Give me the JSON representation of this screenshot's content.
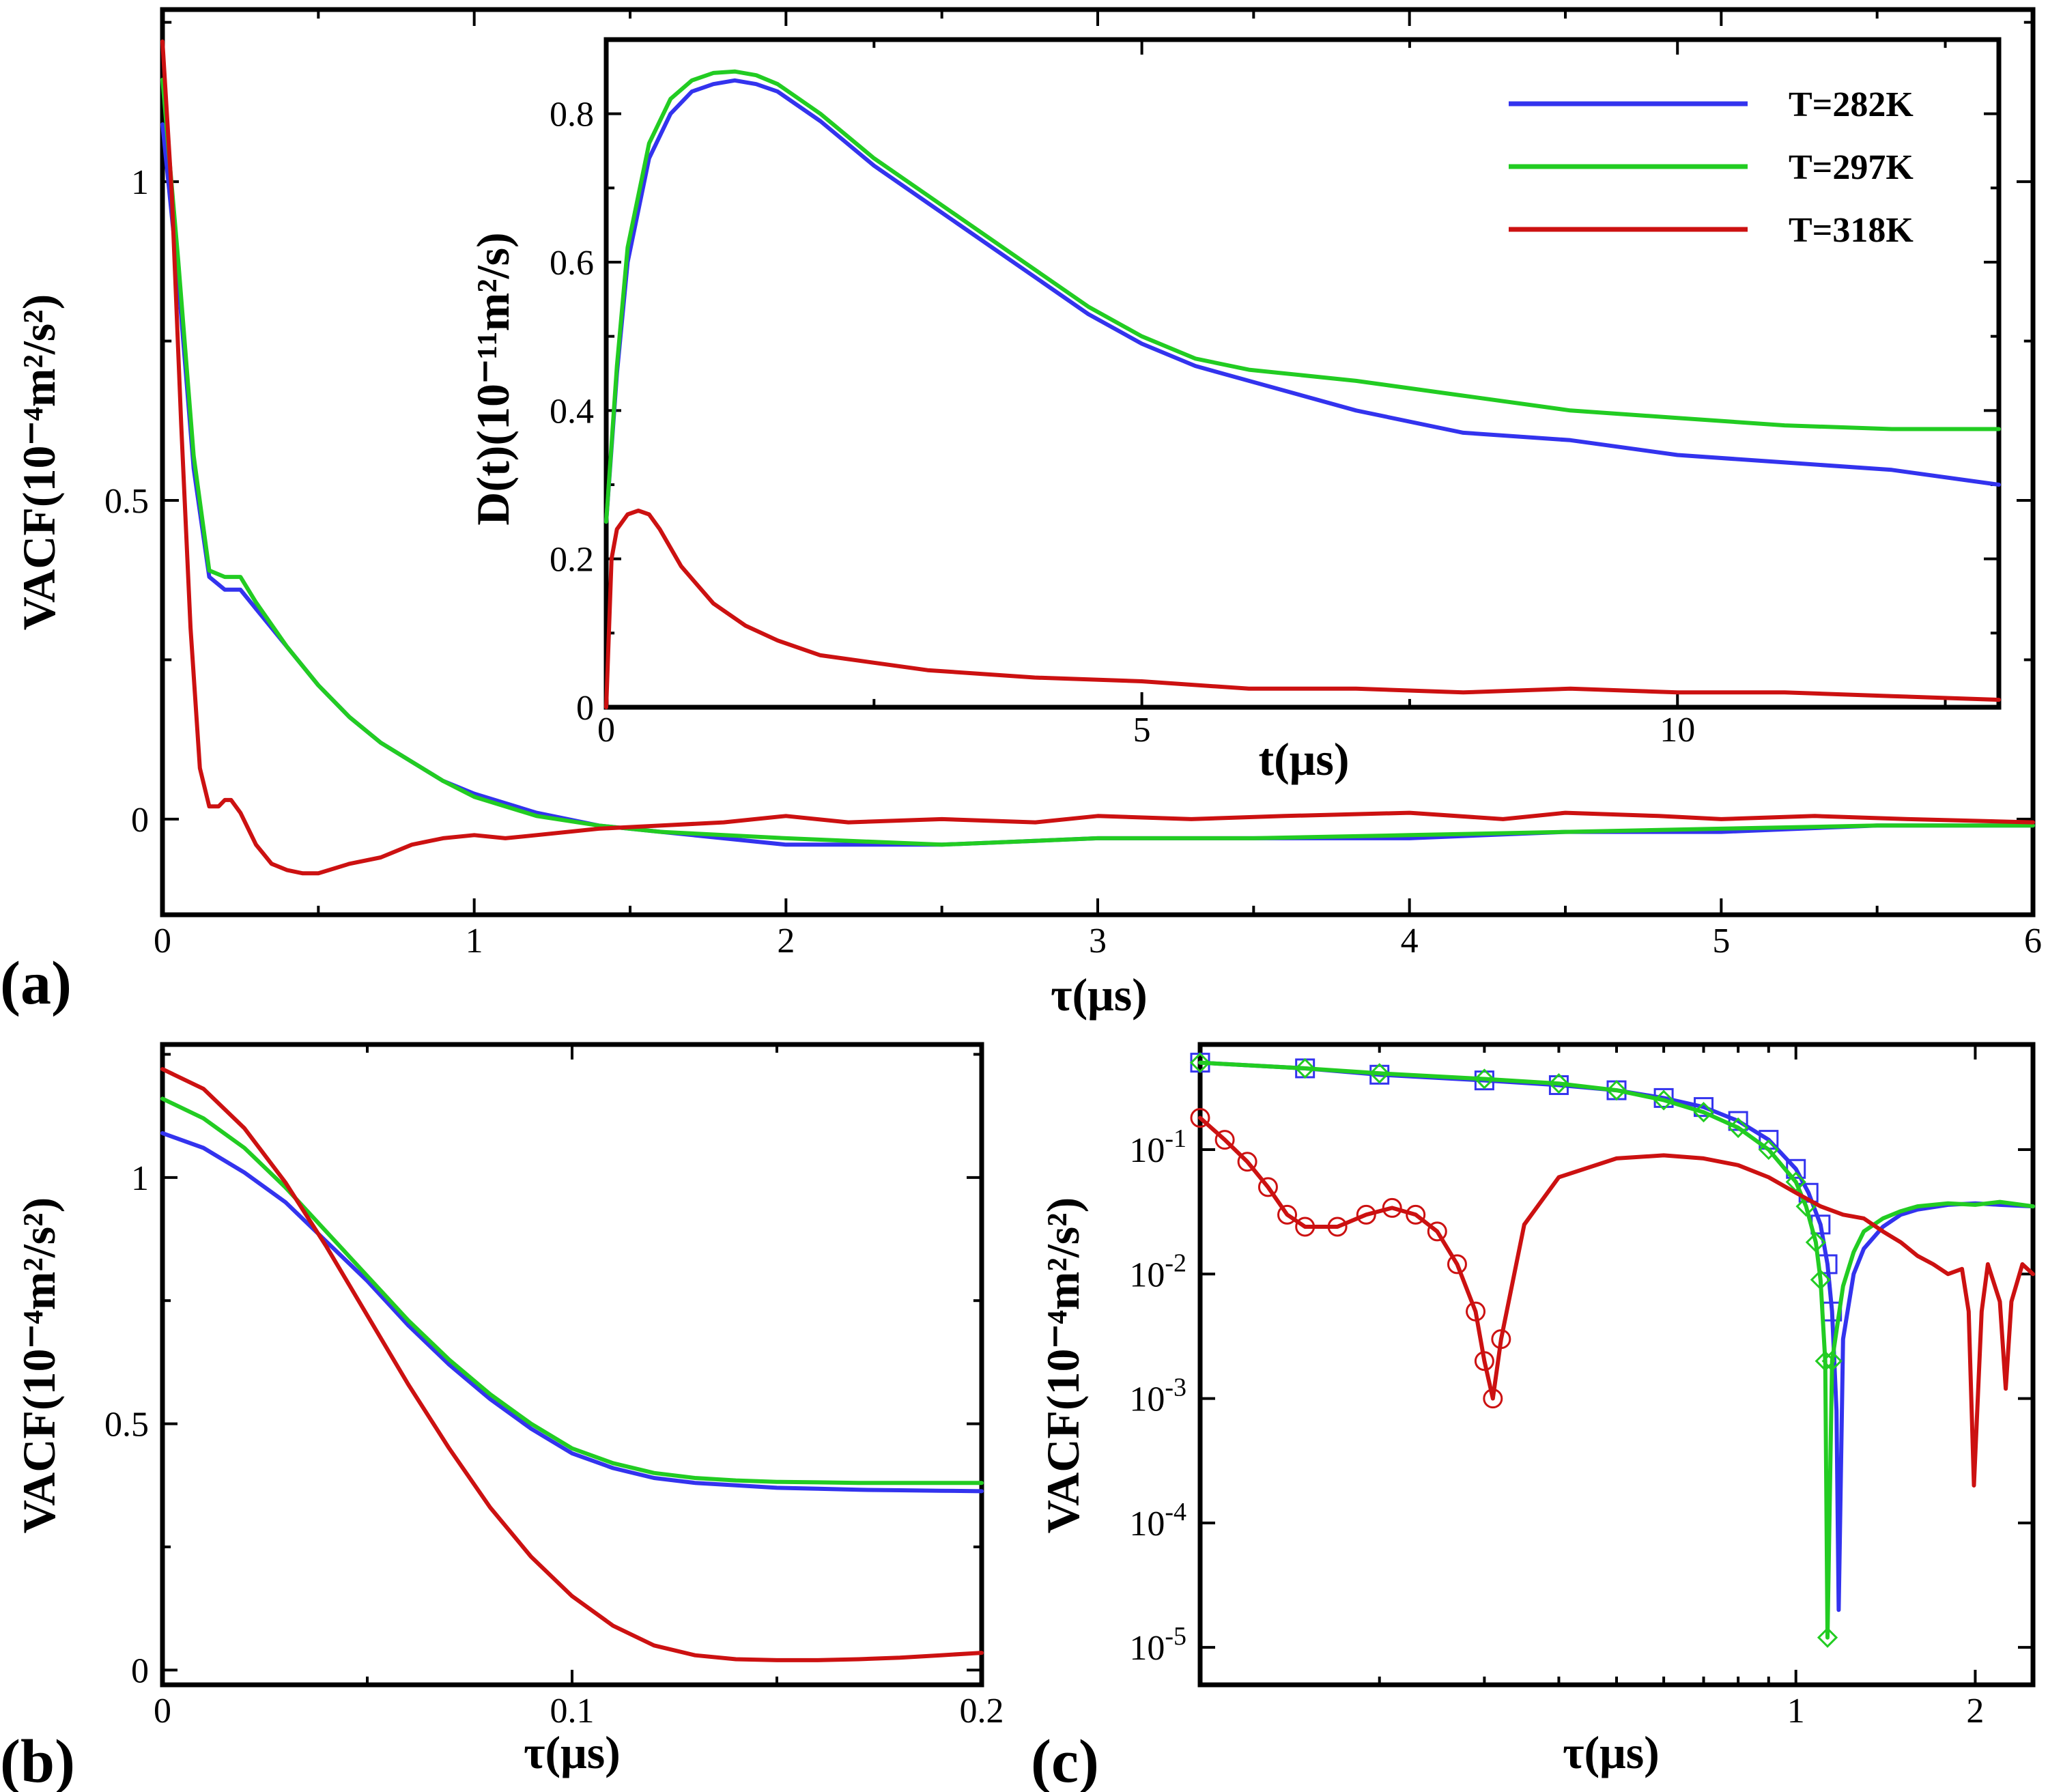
{
  "colors": {
    "t282": "#3333ee",
    "t297": "#22cc22",
    "t318": "#cc1111",
    "axis": "#000000"
  },
  "chart_data": [
    {
      "panel": "(a)",
      "type": "line",
      "title": "",
      "xlabel": "τ(μs)",
      "ylabel": "VACF(10⁻⁴m²/s²)",
      "xlim": [
        0,
        6
      ],
      "ylim": [
        -0.15,
        1.27
      ],
      "xticks": [
        {
          "v": 0,
          "label": "0"
        },
        {
          "v": 1,
          "label": "1"
        },
        {
          "v": 2,
          "label": "2"
        },
        {
          "v": 3,
          "label": "3"
        },
        {
          "v": 4,
          "label": "4"
        },
        {
          "v": 5,
          "label": "5"
        },
        {
          "v": 6,
          "label": "6"
        }
      ],
      "yticks": [
        {
          "v": 0,
          "label": "0"
        },
        {
          "v": 0.5,
          "label": "0.5"
        },
        {
          "v": 1,
          "label": "1"
        }
      ],
      "series": [
        {
          "name": "T=282K",
          "color_key": "t282",
          "x": [
            0,
            0.05,
            0.1,
            0.15,
            0.2,
            0.25,
            0.3,
            0.4,
            0.5,
            0.6,
            0.7,
            0.8,
            0.9,
            1.0,
            1.2,
            1.4,
            1.6,
            2.0,
            2.5,
            3.0,
            3.5,
            4.0,
            4.5,
            5.0,
            5.5,
            6.0
          ],
          "y": [
            1.09,
            0.85,
            0.55,
            0.38,
            0.36,
            0.36,
            0.33,
            0.27,
            0.21,
            0.16,
            0.12,
            0.09,
            0.06,
            0.04,
            0.01,
            -0.01,
            -0.02,
            -0.04,
            -0.04,
            -0.03,
            -0.03,
            -0.03,
            -0.02,
            -0.02,
            -0.01,
            -0.01
          ]
        },
        {
          "name": "T=297K",
          "color_key": "t297",
          "x": [
            0,
            0.05,
            0.1,
            0.15,
            0.2,
            0.25,
            0.3,
            0.4,
            0.5,
            0.6,
            0.7,
            0.8,
            0.9,
            1.0,
            1.2,
            1.4,
            1.6,
            2.0,
            2.5,
            3.0,
            3.5,
            4.0,
            4.5,
            5.0,
            5.5,
            6.0
          ],
          "y": [
            1.16,
            0.88,
            0.57,
            0.39,
            0.38,
            0.38,
            0.34,
            0.27,
            0.21,
            0.16,
            0.12,
            0.09,
            0.06,
            0.035,
            0.005,
            -0.01,
            -0.02,
            -0.03,
            -0.04,
            -0.03,
            -0.03,
            -0.025,
            -0.02,
            -0.015,
            -0.01,
            -0.01
          ]
        },
        {
          "name": "T=318K",
          "color_key": "t318",
          "x": [
            0,
            0.03,
            0.06,
            0.09,
            0.12,
            0.15,
            0.18,
            0.2,
            0.22,
            0.25,
            0.3,
            0.35,
            0.4,
            0.45,
            0.5,
            0.6,
            0.7,
            0.8,
            0.9,
            1.0,
            1.1,
            1.2,
            1.4,
            1.6,
            1.8,
            2.0,
            2.2,
            2.5,
            2.8,
            3.0,
            3.3,
            3.6,
            4.0,
            4.3,
            4.5,
            4.8,
            5.0,
            5.3,
            5.6,
            6.0
          ],
          "y": [
            1.22,
            0.98,
            0.62,
            0.3,
            0.08,
            0.02,
            0.02,
            0.03,
            0.03,
            0.01,
            -0.04,
            -0.07,
            -0.08,
            -0.085,
            -0.085,
            -0.07,
            -0.06,
            -0.04,
            -0.03,
            -0.025,
            -0.03,
            -0.025,
            -0.015,
            -0.01,
            -0.005,
            0.005,
            -0.005,
            0,
            -0.005,
            0.005,
            0,
            0.005,
            0.01,
            0,
            0.01,
            0.005,
            0,
            0.005,
            0,
            -0.005
          ]
        }
      ]
    },
    {
      "panel": "(a) inset",
      "type": "line",
      "title": "",
      "xlabel": "t(μs)",
      "ylabel": "D(t)(10⁻¹¹m²/s)",
      "xlim": [
        0,
        13
      ],
      "ylim": [
        0,
        0.9
      ],
      "xticks": [
        {
          "v": 0,
          "label": "0"
        },
        {
          "v": 5,
          "label": "5"
        },
        {
          "v": 10,
          "label": "10"
        }
      ],
      "yticks": [
        {
          "v": 0,
          "label": "0"
        },
        {
          "v": 0.2,
          "label": "0.2"
        },
        {
          "v": 0.4,
          "label": "0.4"
        },
        {
          "v": 0.6,
          "label": "0.6"
        },
        {
          "v": 0.8,
          "label": "0.8"
        }
      ],
      "legend_position": "top-right",
      "series": [
        {
          "name": "T=282K",
          "color_key": "t282",
          "x": [
            0,
            0.1,
            0.2,
            0.4,
            0.6,
            0.8,
            1.0,
            1.2,
            1.4,
            1.6,
            2.0,
            2.5,
            3.0,
            3.5,
            4.0,
            4.5,
            5.0,
            5.5,
            6.0,
            7.0,
            8.0,
            9.0,
            10.0,
            11.0,
            12.0,
            13.0
          ],
          "y": [
            0.25,
            0.45,
            0.6,
            0.74,
            0.8,
            0.83,
            0.84,
            0.845,
            0.84,
            0.83,
            0.79,
            0.73,
            0.68,
            0.63,
            0.58,
            0.53,
            0.49,
            0.46,
            0.44,
            0.4,
            0.37,
            0.36,
            0.34,
            0.33,
            0.32,
            0.3
          ]
        },
        {
          "name": "T=297K",
          "color_key": "t297",
          "x": [
            0,
            0.1,
            0.2,
            0.4,
            0.6,
            0.8,
            1.0,
            1.2,
            1.4,
            1.6,
            2.0,
            2.5,
            3.0,
            3.5,
            4.0,
            4.5,
            5.0,
            5.5,
            6.0,
            7.0,
            8.0,
            9.0,
            10.0,
            11.0,
            12.0,
            13.0
          ],
          "y": [
            0.25,
            0.46,
            0.62,
            0.76,
            0.82,
            0.845,
            0.855,
            0.857,
            0.852,
            0.84,
            0.8,
            0.74,
            0.69,
            0.64,
            0.59,
            0.54,
            0.5,
            0.47,
            0.455,
            0.44,
            0.42,
            0.4,
            0.39,
            0.38,
            0.375,
            0.375
          ]
        },
        {
          "name": "T=318K",
          "color_key": "t318",
          "x": [
            0,
            0.05,
            0.1,
            0.2,
            0.3,
            0.4,
            0.5,
            0.7,
            1.0,
            1.3,
            1.6,
            2.0,
            2.5,
            3.0,
            4.0,
            5.0,
            6.0,
            7.0,
            8.0,
            9.0,
            10.0,
            11.0,
            12.0,
            13.0
          ],
          "y": [
            0.0,
            0.2,
            0.24,
            0.26,
            0.265,
            0.26,
            0.24,
            0.19,
            0.14,
            0.11,
            0.09,
            0.07,
            0.06,
            0.05,
            0.04,
            0.035,
            0.025,
            0.025,
            0.02,
            0.025,
            0.02,
            0.02,
            0.015,
            0.01
          ]
        }
      ]
    },
    {
      "panel": "(b)",
      "type": "line",
      "title": "",
      "xlabel": "τ(μs)",
      "ylabel": "VACF(10⁻⁴m²/s²)",
      "xlim": [
        0,
        0.2
      ],
      "ylim": [
        -0.03,
        1.27
      ],
      "xticks": [
        {
          "v": 0,
          "label": "0"
        },
        {
          "v": 0.1,
          "label": "0.1"
        },
        {
          "v": 0.2,
          "label": "0.2"
        }
      ],
      "yticks": [
        {
          "v": 0,
          "label": "0"
        },
        {
          "v": 0.5,
          "label": "0.5"
        },
        {
          "v": 1,
          "label": "1"
        }
      ],
      "series": [
        {
          "name": "T=282K",
          "color_key": "t282",
          "x": [
            0,
            0.01,
            0.02,
            0.03,
            0.04,
            0.05,
            0.06,
            0.07,
            0.08,
            0.09,
            0.1,
            0.11,
            0.12,
            0.13,
            0.14,
            0.15,
            0.16,
            0.17,
            0.18,
            0.19,
            0.2
          ],
          "y": [
            1.09,
            1.06,
            1.01,
            0.95,
            0.87,
            0.79,
            0.7,
            0.62,
            0.55,
            0.49,
            0.44,
            0.41,
            0.39,
            0.38,
            0.375,
            0.37,
            0.368,
            0.366,
            0.365,
            0.364,
            0.363
          ]
        },
        {
          "name": "T=297K",
          "color_key": "t297",
          "x": [
            0,
            0.01,
            0.02,
            0.03,
            0.04,
            0.05,
            0.06,
            0.07,
            0.08,
            0.09,
            0.1,
            0.11,
            0.12,
            0.13,
            0.14,
            0.15,
            0.16,
            0.17,
            0.18,
            0.19,
            0.2
          ],
          "y": [
            1.16,
            1.12,
            1.06,
            0.98,
            0.89,
            0.8,
            0.71,
            0.63,
            0.56,
            0.5,
            0.45,
            0.42,
            0.4,
            0.39,
            0.385,
            0.382,
            0.381,
            0.38,
            0.38,
            0.38,
            0.38
          ]
        },
        {
          "name": "T=318K",
          "color_key": "t318",
          "x": [
            0,
            0.01,
            0.02,
            0.03,
            0.04,
            0.05,
            0.06,
            0.07,
            0.08,
            0.09,
            0.1,
            0.11,
            0.12,
            0.13,
            0.14,
            0.15,
            0.16,
            0.17,
            0.18,
            0.19,
            0.2
          ],
          "y": [
            1.22,
            1.18,
            1.1,
            0.99,
            0.86,
            0.72,
            0.58,
            0.45,
            0.33,
            0.23,
            0.15,
            0.09,
            0.05,
            0.03,
            0.022,
            0.02,
            0.02,
            0.022,
            0.025,
            0.03,
            0.035
          ]
        }
      ]
    },
    {
      "panel": "(c)",
      "type": "line",
      "title": "",
      "xlabel": "τ(μs)",
      "ylabel": "VACF(10⁻⁴m²/s²)",
      "xscale": "log",
      "yscale": "log",
      "xlim": [
        0.1,
        2.5
      ],
      "ylim": [
        5e-06,
        0.7
      ],
      "xticks": [
        {
          "v": 1,
          "label": "1"
        },
        {
          "v": 2,
          "label": "2"
        }
      ],
      "yticks": [
        {
          "v": 1e-05,
          "label": "10⁻⁵"
        },
        {
          "v": 0.0001,
          "label": "10⁻⁴"
        },
        {
          "v": 0.001,
          "label": "10⁻³"
        },
        {
          "v": 0.01,
          "label": "10⁻²"
        },
        {
          "v": 0.1,
          "label": "10⁻¹"
        }
      ],
      "series": [
        {
          "name": "T=282K",
          "color_key": "t282",
          "marker": "square",
          "x": [
            0.1,
            0.15,
            0.2,
            0.3,
            0.4,
            0.5,
            0.6,
            0.7,
            0.8,
            0.9,
            1.0,
            1.05,
            1.1,
            1.13,
            1.15,
            1.17,
            1.18,
            1.2,
            1.25,
            1.3,
            1.4,
            1.5,
            1.6,
            1.8,
            2.0,
            2.2,
            2.5
          ],
          "y": [
            0.5,
            0.45,
            0.4,
            0.36,
            0.33,
            0.3,
            0.26,
            0.22,
            0.17,
            0.12,
            0.07,
            0.045,
            0.025,
            0.012,
            0.005,
            0.0008,
            2e-05,
            0.003,
            0.01,
            0.016,
            0.024,
            0.03,
            0.033,
            0.036,
            0.037,
            0.036,
            0.035
          ]
        },
        {
          "name": "T=297K",
          "color_key": "t297",
          "marker": "diamond",
          "x": [
            0.1,
            0.15,
            0.2,
            0.3,
            0.4,
            0.5,
            0.6,
            0.7,
            0.8,
            0.9,
            1.0,
            1.04,
            1.08,
            1.1,
            1.12,
            1.13,
            1.15,
            1.2,
            1.25,
            1.3,
            1.4,
            1.5,
            1.6,
            1.8,
            2.0,
            2.2,
            2.5
          ],
          "y": [
            0.5,
            0.45,
            0.41,
            0.37,
            0.34,
            0.3,
            0.25,
            0.2,
            0.15,
            0.1,
            0.055,
            0.035,
            0.018,
            0.009,
            0.002,
            1.2e-05,
            0.002,
            0.008,
            0.015,
            0.022,
            0.028,
            0.032,
            0.035,
            0.037,
            0.036,
            0.038,
            0.035
          ]
        },
        {
          "name": "T=318K",
          "color_key": "t318",
          "marker": "circle",
          "x": [
            0.1,
            0.11,
            0.12,
            0.13,
            0.14,
            0.15,
            0.17,
            0.19,
            0.21,
            0.23,
            0.25,
            0.27,
            0.29,
            0.3,
            0.31,
            0.32,
            0.35,
            0.4,
            0.5,
            0.6,
            0.7,
            0.8,
            0.9,
            1.0,
            1.1,
            1.2,
            1.3,
            1.4,
            1.5,
            1.6,
            1.7,
            1.8,
            1.9,
            1.95,
            1.99,
            2.05,
            2.1,
            2.2,
            2.25,
            2.3,
            2.4,
            2.5
          ],
          "y": [
            0.18,
            0.12,
            0.08,
            0.05,
            0.03,
            0.024,
            0.024,
            0.03,
            0.034,
            0.03,
            0.022,
            0.012,
            0.005,
            0.002,
            0.001,
            0.003,
            0.025,
            0.06,
            0.085,
            0.09,
            0.085,
            0.075,
            0.06,
            0.045,
            0.035,
            0.03,
            0.028,
            0.022,
            0.018,
            0.014,
            0.012,
            0.01,
            0.011,
            0.005,
            0.0002,
            0.005,
            0.012,
            0.006,
            0.0012,
            0.006,
            0.012,
            0.01
          ]
        }
      ]
    }
  ]
}
